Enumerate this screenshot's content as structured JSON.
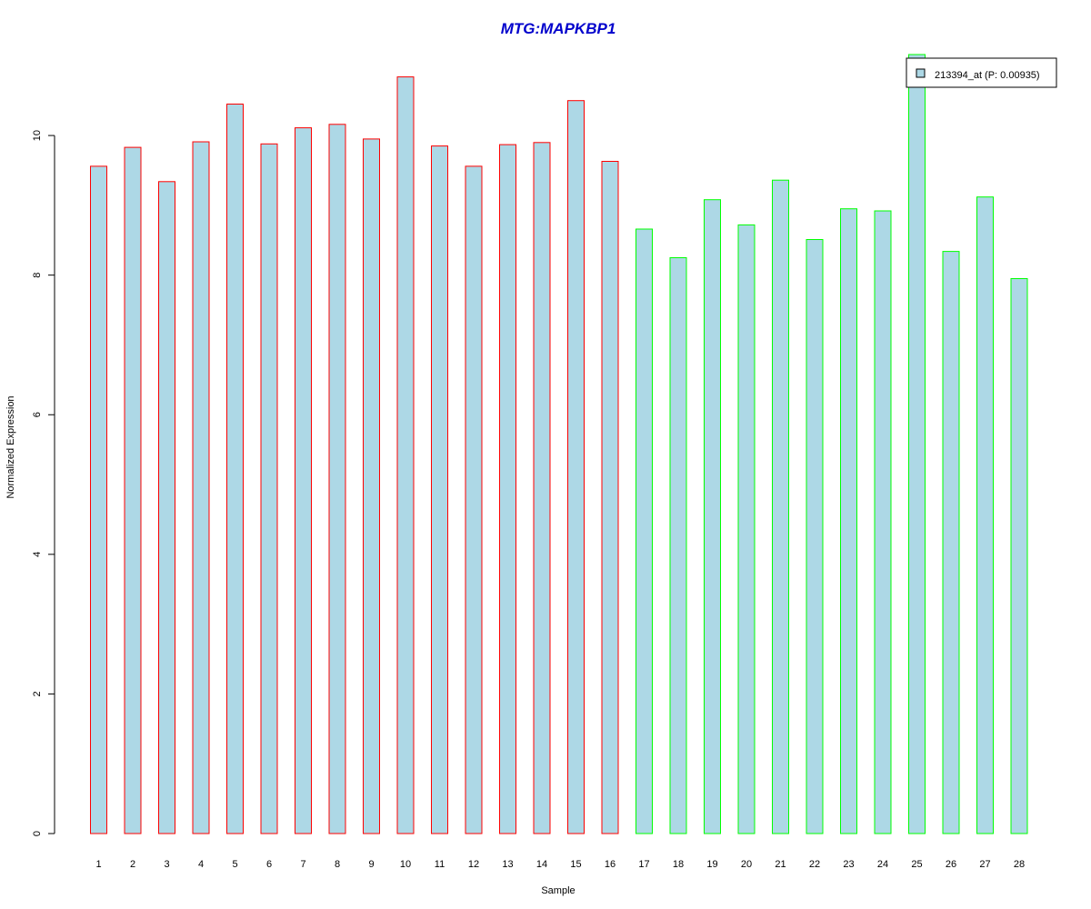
{
  "chart_data": {
    "type": "bar",
    "title": "MTG:MAPKBP1",
    "xlabel": "Sample",
    "ylabel": "Normalized Expression",
    "categories": [
      "1",
      "2",
      "3",
      "4",
      "5",
      "6",
      "7",
      "8",
      "9",
      "10",
      "11",
      "12",
      "13",
      "14",
      "15",
      "16",
      "17",
      "18",
      "19",
      "20",
      "21",
      "22",
      "23",
      "24",
      "25",
      "26",
      "27",
      "28"
    ],
    "values": [
      9.56,
      9.83,
      9.34,
      9.91,
      10.45,
      9.88,
      10.11,
      10.16,
      9.95,
      10.84,
      9.85,
      9.56,
      9.87,
      9.9,
      10.5,
      9.63,
      8.66,
      8.25,
      9.08,
      8.72,
      9.36,
      8.51,
      8.95,
      8.92,
      11.16,
      8.34,
      9.12,
      7.95
    ],
    "groups": [
      1,
      1,
      1,
      1,
      1,
      1,
      1,
      1,
      1,
      1,
      1,
      1,
      1,
      1,
      1,
      1,
      2,
      2,
      2,
      2,
      2,
      2,
      2,
      2,
      2,
      2,
      2,
      2
    ],
    "ylim": [
      0,
      11.16
    ],
    "yticks": [
      0,
      2,
      4,
      6,
      8,
      10
    ],
    "grid": false,
    "legend": {
      "position": "top-right",
      "entries": [
        {
          "label": "213394_at (P: 0.00935)"
        }
      ]
    },
    "colors": {
      "title": "#0000CC",
      "bar_fill": "#ADD8E6",
      "group1_border": "#FF0000",
      "group2_border": "#00FF00",
      "axis": "#000000"
    }
  }
}
